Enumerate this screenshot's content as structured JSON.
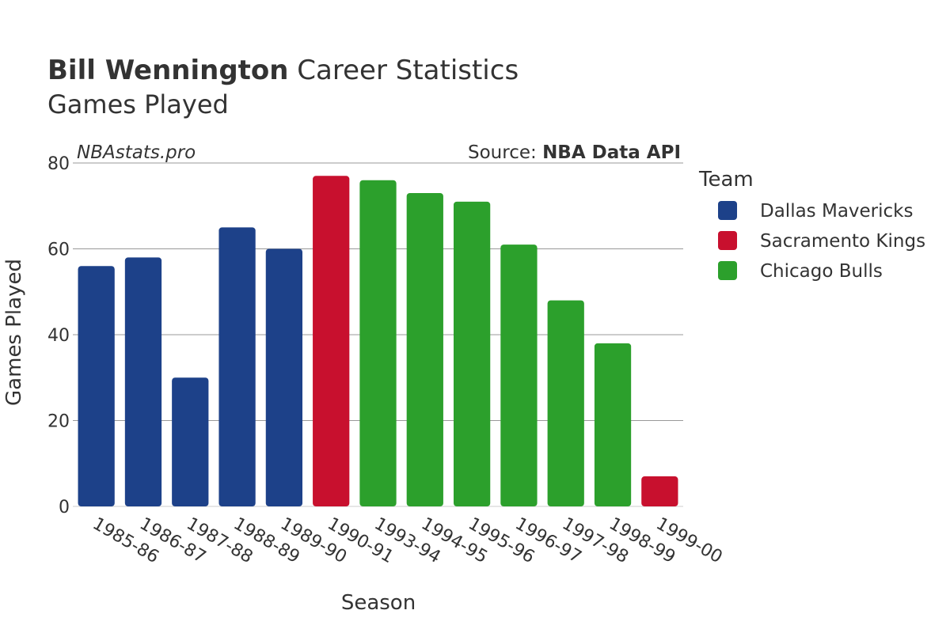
{
  "title_bold": "Bill Wennington",
  "title_rest": " Career Statistics",
  "subtitle": "Games Played",
  "watermark": "NBAstats.pro",
  "source_prefix": "Source: ",
  "source_name": "NBA Data API",
  "colors": {
    "Dallas Mavericks": "#1d4189",
    "Sacramento Kings": "#c8102e",
    "Chicago Bulls": "#2ca02c",
    "gridline": "#999999",
    "text": "#333333"
  },
  "legend": {
    "title": "Team",
    "items": [
      "Dallas Mavericks",
      "Sacramento Kings",
      "Chicago Bulls"
    ]
  },
  "chart_data": {
    "type": "bar",
    "xlabel": "Season",
    "ylabel": "Games Played",
    "ylim": [
      0,
      80
    ],
    "yticks": [
      0,
      20,
      40,
      60,
      80
    ],
    "grid": true,
    "legend_position": "right",
    "categories": [
      "1985-86",
      "1986-87",
      "1987-88",
      "1988-89",
      "1989-90",
      "1990-91",
      "1993-94",
      "1994-95",
      "1995-96",
      "1996-97",
      "1997-98",
      "1998-99",
      "1999-00"
    ],
    "values": [
      56,
      58,
      30,
      65,
      60,
      77,
      76,
      73,
      71,
      61,
      48,
      38,
      7
    ],
    "teams": [
      "Dallas Mavericks",
      "Dallas Mavericks",
      "Dallas Mavericks",
      "Dallas Mavericks",
      "Dallas Mavericks",
      "Sacramento Kings",
      "Chicago Bulls",
      "Chicago Bulls",
      "Chicago Bulls",
      "Chicago Bulls",
      "Chicago Bulls",
      "Chicago Bulls",
      "Sacramento Kings"
    ]
  }
}
